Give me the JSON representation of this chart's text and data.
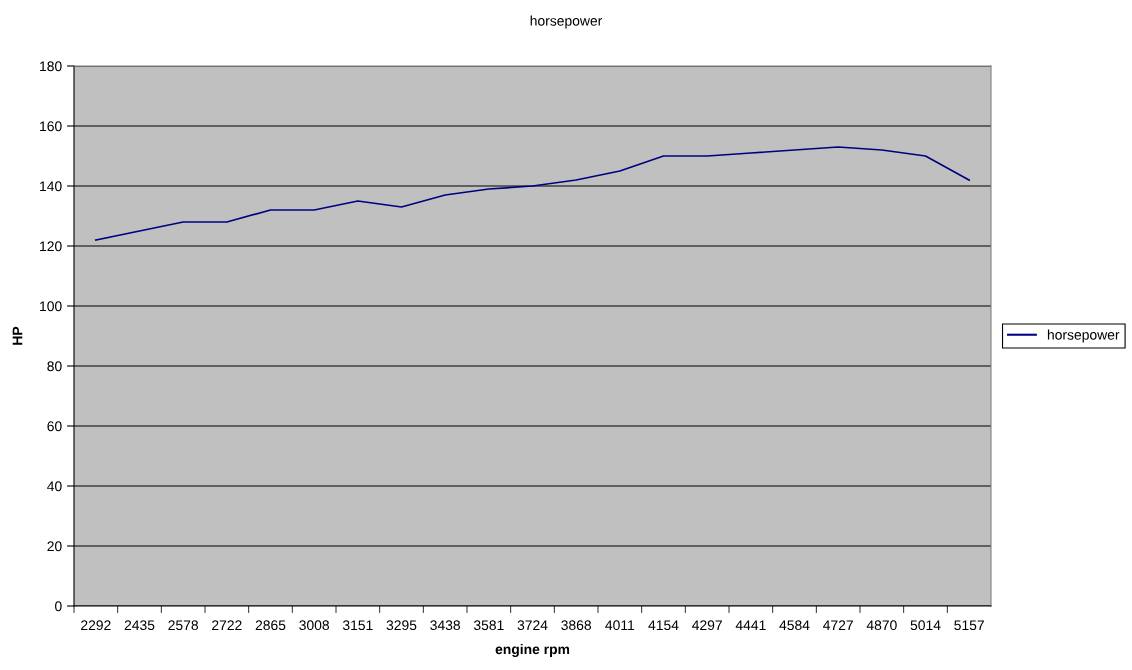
{
  "chart_data": {
    "type": "line",
    "title": "horsepower",
    "xlabel": "engine rpm",
    "ylabel": "HP",
    "categories": [
      "2292",
      "2435",
      "2578",
      "2722",
      "2865",
      "3008",
      "3151",
      "3295",
      "3438",
      "3581",
      "3724",
      "3868",
      "4011",
      "4154",
      "4297",
      "4441",
      "4584",
      "4727",
      "4870",
      "5014",
      "5157"
    ],
    "series": [
      {
        "name": "horsepower",
        "color": "#000080",
        "values": [
          122,
          125,
          128,
          128,
          132,
          132,
          135,
          133,
          137,
          139,
          140,
          142,
          145,
          150,
          150,
          151,
          152,
          153,
          152,
          150,
          142
        ]
      }
    ],
    "ylim": [
      0,
      180
    ],
    "yticks": [
      0,
      20,
      40,
      60,
      80,
      100,
      120,
      140,
      160,
      180
    ],
    "grid": "y",
    "legend": "right",
    "marker": "none",
    "line_style": "solid"
  }
}
